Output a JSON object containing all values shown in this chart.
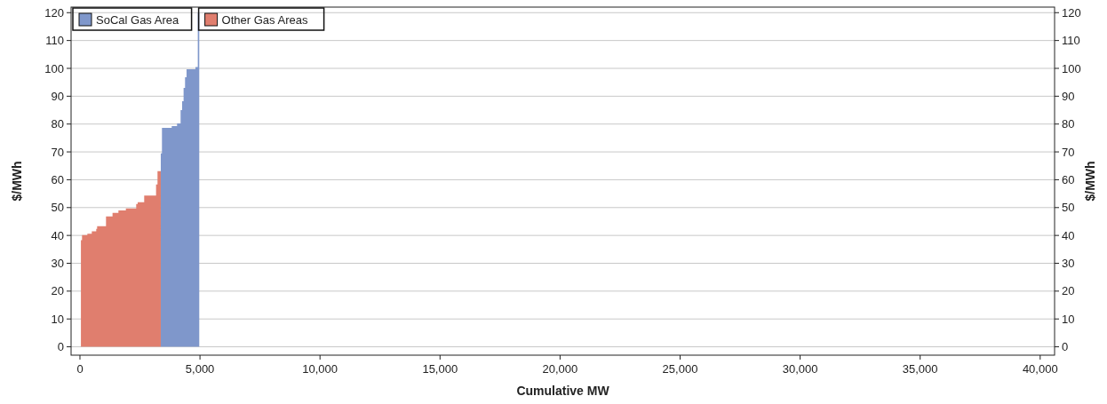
{
  "chart_data": {
    "type": "area",
    "xlabel": "Cumulative MW",
    "ylabel": "$/MWh",
    "y2label": "$/MWh",
    "series": [
      {
        "name": "Other Gas Areas",
        "color": "#e07e6e",
        "x": [
          40,
          86,
          86,
          308,
          308,
          493,
          493,
          678,
          678,
          715,
          715,
          1085,
          1085,
          1357,
          1357,
          1603,
          1603,
          1912,
          1912,
          2343,
          2343,
          2405,
          2405,
          2676,
          2676,
          3170,
          3170,
          3231,
          3231,
          3367
        ],
        "values": [
          38.3,
          38.3,
          40.1,
          40.1,
          40.6,
          40.6,
          41.5,
          41.5,
          42.4,
          42.4,
          43.3,
          43.3,
          46.8,
          46.8,
          48.1,
          48.1,
          49.0,
          49.0,
          49.7,
          49.7,
          51.3,
          51.3,
          51.9,
          51.9,
          54.3,
          54.3,
          58.3,
          58.3,
          63.1,
          63.1
        ]
      },
      {
        "name": "SoCal Gas Area",
        "color": "#7f97cb",
        "x": [
          3367,
          3416,
          3416,
          3823,
          3823,
          4045,
          4045,
          4193,
          4193,
          4255,
          4255,
          4317,
          4317,
          4378,
          4378,
          4440,
          4440,
          4810,
          4810,
          4909,
          4909,
          4970
        ],
        "values": [
          69.5,
          69.5,
          78.6,
          78.6,
          79.3,
          79.3,
          80.2,
          80.2,
          85.0,
          85.0,
          88.2,
          88.2,
          93.0,
          93.0,
          96.8,
          96.8,
          99.7,
          99.7,
          100.5,
          100.5,
          120,
          120
        ]
      }
    ],
    "legend": "top left",
    "grid": "y",
    "xlim": [
      -370,
      40600
    ],
    "xticks": [
      0,
      {
        "value": 5000,
        "label": "5,000"
      },
      {
        "value": 10000,
        "label": "10,000"
      },
      {
        "value": 15000,
        "label": "15,000"
      },
      {
        "value": 20000,
        "label": "20,000"
      },
      {
        "value": 25000,
        "label": "25,000"
      },
      {
        "value": 30000,
        "label": "30,000"
      },
      {
        "value": 35000,
        "label": "35,000"
      },
      {
        "value": 40000,
        "label": "40,000"
      }
    ],
    "ylim": [
      -3,
      122
    ],
    "yticks": [
      0,
      10,
      20,
      30,
      40,
      50,
      60,
      70,
      80,
      90,
      100,
      110,
      120
    ],
    "y2lim": [
      -3,
      122
    ],
    "y2ticks": [
      0,
      10,
      20,
      30,
      40,
      50,
      60,
      70,
      80,
      90,
      100,
      110,
      120
    ]
  }
}
